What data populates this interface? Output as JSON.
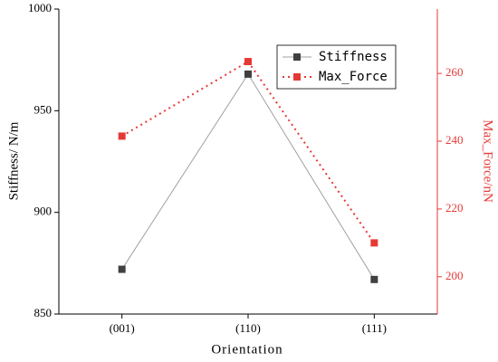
{
  "chart_data": {
    "type": "line",
    "x_label": "Orientation",
    "y_label": "Stiffness/ N/m",
    "y2_label": "Max_Force/nN",
    "categories": [
      "(001)",
      "(110)",
      "(111)"
    ],
    "series": [
      {
        "name": "Stiffness",
        "color": "#404040",
        "line_color": "#a0a0a0",
        "line_style": "solid",
        "values": [
          872,
          968,
          867
        ]
      },
      {
        "name": "Max_Force",
        "color": "#e53935",
        "line_color": "#e53935",
        "line_style": "dotted",
        "axis": "y2",
        "values": [
          241.5,
          263.5,
          210
        ]
      }
    ],
    "ylim": [
      850,
      1000
    ],
    "yticks": [
      850,
      900,
      950,
      1000
    ],
    "y2lim": [
      189,
      279
    ],
    "y2ticks": [
      200,
      220,
      240,
      260
    ],
    "y2_color": "#e53935",
    "legend": "upper right"
  }
}
